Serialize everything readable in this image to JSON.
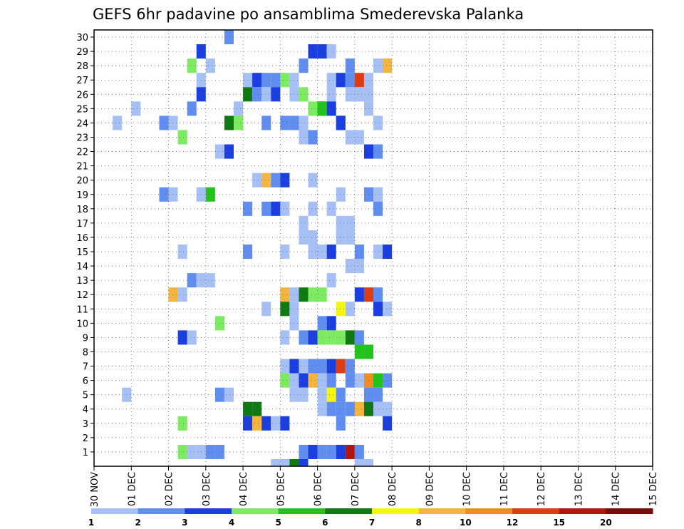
{
  "chart_data": {
    "type": "heatmap",
    "title": "GEFS 6hr padavine po ansamblima Smederevska Palanka",
    "xlabel": "",
    "ylabel": "",
    "x_ticks": [
      "30 NOV",
      "01 DEC",
      "02 DEC",
      "03 DEC",
      "04 DEC",
      "05 DEC",
      "06 DEC",
      "07 DEC",
      "08 DEC",
      "09 DEC",
      "10 DEC",
      "11 DEC",
      "12 DEC",
      "13 DEC",
      "14 DEC",
      "15 DEC"
    ],
    "y_ticks": [
      1,
      2,
      3,
      4,
      5,
      6,
      7,
      8,
      9,
      10,
      11,
      12,
      13,
      14,
      15,
      16,
      17,
      18,
      19,
      20,
      21,
      22,
      23,
      24,
      25,
      26,
      27,
      28,
      29,
      30
    ],
    "xlim_days": [
      0,
      15
    ],
    "ylim": [
      0,
      30
    ],
    "time_step_hours": 6,
    "grid": "dotted",
    "colorbar": {
      "placement": "bottom",
      "labels": [
        "1",
        "2",
        "3",
        "4",
        "5",
        "6",
        "7",
        "8",
        "10",
        "12",
        "15",
        "20"
      ],
      "colors": [
        "#a6c0f5",
        "#5f8df0",
        "#1a3ee0",
        "#7deb62",
        "#22c41c",
        "#0f7a12",
        "#f5f512",
        "#f5b43c",
        "#f08c1e",
        "#e03c14",
        "#b4140f",
        "#7d0a0a"
      ]
    },
    "cells_note": "Each cell: [member, 6-hour step since 30 NOV 00UTC (0-59), precipitation color class index]",
    "cells": [
      [
        30,
        14,
        1
      ],
      [
        29,
        11,
        2
      ],
      [
        29,
        23,
        2
      ],
      [
        29,
        24,
        2
      ],
      [
        29,
        25,
        0
      ],
      [
        28,
        10,
        3
      ],
      [
        28,
        12,
        0
      ],
      [
        28,
        22,
        1
      ],
      [
        28,
        27,
        1
      ],
      [
        28,
        30,
        0
      ],
      [
        28,
        31,
        7
      ],
      [
        27,
        11,
        0
      ],
      [
        27,
        16,
        0
      ],
      [
        27,
        17,
        2
      ],
      [
        27,
        18,
        1
      ],
      [
        27,
        19,
        1
      ],
      [
        27,
        20,
        3
      ],
      [
        27,
        21,
        0
      ],
      [
        27,
        21,
        0
      ],
      [
        27,
        25,
        0
      ],
      [
        27,
        26,
        2
      ],
      [
        27,
        27,
        1
      ],
      [
        27,
        28,
        9
      ],
      [
        27,
        29,
        0
      ],
      [
        26,
        11,
        2
      ],
      [
        26,
        16,
        5
      ],
      [
        26,
        17,
        1
      ],
      [
        26,
        18,
        0
      ],
      [
        26,
        19,
        2
      ],
      [
        26,
        21,
        0
      ],
      [
        26,
        22,
        3
      ],
      [
        26,
        25,
        0
      ],
      [
        26,
        27,
        0
      ],
      [
        26,
        28,
        0
      ],
      [
        26,
        29,
        0
      ],
      [
        25,
        4,
        0
      ],
      [
        25,
        10,
        1
      ],
      [
        25,
        15,
        0
      ],
      [
        25,
        23,
        3
      ],
      [
        25,
        24,
        1
      ],
      [
        25,
        24,
        4
      ],
      [
        25,
        25,
        2
      ],
      [
        25,
        29,
        0
      ],
      [
        24,
        2,
        0
      ],
      [
        24,
        7,
        1
      ],
      [
        24,
        8,
        0
      ],
      [
        24,
        14,
        5
      ],
      [
        24,
        15,
        3
      ],
      [
        24,
        18,
        1
      ],
      [
        24,
        20,
        1
      ],
      [
        24,
        21,
        1
      ],
      [
        24,
        22,
        0
      ],
      [
        24,
        26,
        8
      ],
      [
        24,
        26,
        2
      ],
      [
        24,
        30,
        0
      ],
      [
        23,
        9,
        3
      ],
      [
        23,
        22,
        0
      ],
      [
        23,
        23,
        1
      ],
      [
        23,
        27,
        0
      ],
      [
        23,
        28,
        0
      ],
      [
        22,
        13,
        0
      ],
      [
        22,
        14,
        3
      ],
      [
        22,
        14,
        2
      ],
      [
        22,
        29,
        2
      ],
      [
        22,
        30,
        1
      ],
      [
        20,
        17,
        0
      ],
      [
        20,
        18,
        7
      ],
      [
        20,
        19,
        1
      ],
      [
        20,
        20,
        2
      ],
      [
        20,
        23,
        0
      ],
      [
        19,
        7,
        1
      ],
      [
        19,
        8,
        0
      ],
      [
        19,
        11,
        0
      ],
      [
        19,
        12,
        4
      ],
      [
        19,
        26,
        0
      ],
      [
        19,
        29,
        1
      ],
      [
        19,
        30,
        0
      ],
      [
        18,
        16,
        1
      ],
      [
        18,
        18,
        1
      ],
      [
        18,
        19,
        2
      ],
      [
        18,
        20,
        0
      ],
      [
        18,
        23,
        0
      ],
      [
        18,
        25,
        0
      ],
      [
        18,
        30,
        1
      ],
      [
        17,
        22,
        0
      ],
      [
        17,
        26,
        0
      ],
      [
        17,
        27,
        0
      ],
      [
        16,
        22,
        0
      ],
      [
        16,
        23,
        0
      ],
      [
        16,
        26,
        0
      ],
      [
        16,
        27,
        0
      ],
      [
        15,
        9,
        0
      ],
      [
        15,
        16,
        1
      ],
      [
        15,
        20,
        0
      ],
      [
        15,
        23,
        0
      ],
      [
        15,
        24,
        0
      ],
      [
        15,
        25,
        2
      ],
      [
        15,
        28,
        1
      ],
      [
        15,
        30,
        0
      ],
      [
        15,
        31,
        2
      ],
      [
        14,
        27,
        0
      ],
      [
        14,
        28,
        0
      ],
      [
        13,
        10,
        1
      ],
      [
        13,
        11,
        0
      ],
      [
        13,
        12,
        0
      ],
      [
        13,
        25,
        0
      ],
      [
        12,
        8,
        7
      ],
      [
        12,
        9,
        0
      ],
      [
        12,
        20,
        7
      ],
      [
        12,
        21,
        0
      ],
      [
        12,
        22,
        5
      ],
      [
        12,
        23,
        3
      ],
      [
        12,
        24,
        3
      ],
      [
        12,
        28,
        2
      ],
      [
        12,
        29,
        9
      ],
      [
        12,
        30,
        1
      ],
      [
        11,
        18,
        0
      ],
      [
        11,
        20,
        5
      ],
      [
        11,
        21,
        0
      ],
      [
        11,
        26,
        6
      ],
      [
        11,
        27,
        0
      ],
      [
        11,
        30,
        2
      ],
      [
        11,
        31,
        0
      ],
      [
        10,
        13,
        3
      ],
      [
        10,
        21,
        0
      ],
      [
        10,
        24,
        1
      ],
      [
        10,
        25,
        2
      ],
      [
        9,
        9,
        2
      ],
      [
        9,
        10,
        0
      ],
      [
        9,
        20,
        0
      ],
      [
        9,
        22,
        1
      ],
      [
        9,
        23,
        2
      ],
      [
        9,
        24,
        3
      ],
      [
        9,
        25,
        3
      ],
      [
        9,
        26,
        3
      ],
      [
        9,
        27,
        5
      ],
      [
        9,
        28,
        1
      ],
      [
        8,
        28,
        4
      ],
      [
        8,
        29,
        4
      ],
      [
        7,
        20,
        0
      ],
      [
        7,
        21,
        2
      ],
      [
        7,
        22,
        0
      ],
      [
        7,
        23,
        1
      ],
      [
        7,
        24,
        1
      ],
      [
        7,
        25,
        2
      ],
      [
        7,
        26,
        9
      ],
      [
        7,
        27,
        1
      ],
      [
        6,
        20,
        3
      ],
      [
        6,
        21,
        0
      ],
      [
        6,
        22,
        2
      ],
      [
        6,
        23,
        6
      ],
      [
        6,
        23,
        7
      ],
      [
        6,
        24,
        0
      ],
      [
        6,
        25,
        1
      ],
      [
        6,
        27,
        1
      ],
      [
        6,
        28,
        0
      ],
      [
        6,
        29,
        8
      ],
      [
        6,
        30,
        4
      ],
      [
        6,
        31,
        1
      ],
      [
        5,
        3,
        0
      ],
      [
        5,
        13,
        1
      ],
      [
        5,
        14,
        0
      ],
      [
        5,
        21,
        0
      ],
      [
        5,
        22,
        0
      ],
      [
        5,
        24,
        0
      ],
      [
        5,
        25,
        6
      ],
      [
        5,
        26,
        1
      ],
      [
        5,
        29,
        1
      ],
      [
        5,
        30,
        1
      ],
      [
        4,
        16,
        5
      ],
      [
        4,
        17,
        5
      ],
      [
        4,
        24,
        0
      ],
      [
        4,
        25,
        1
      ],
      [
        4,
        26,
        1
      ],
      [
        4,
        27,
        1
      ],
      [
        4,
        28,
        7
      ],
      [
        4,
        29,
        5
      ],
      [
        4,
        30,
        0
      ],
      [
        4,
        31,
        0
      ],
      [
        3,
        9,
        3
      ],
      [
        3,
        16,
        2
      ],
      [
        3,
        17,
        7
      ],
      [
        3,
        18,
        2
      ],
      [
        3,
        19,
        0
      ],
      [
        3,
        20,
        2
      ],
      [
        3,
        26,
        1
      ],
      [
        3,
        31,
        2
      ],
      [
        1,
        9,
        3
      ],
      [
        1,
        10,
        0
      ],
      [
        1,
        11,
        0
      ],
      [
        1,
        12,
        1
      ],
      [
        1,
        13,
        1
      ],
      [
        1,
        22,
        1
      ],
      [
        1,
        23,
        2
      ],
      [
        1,
        24,
        1
      ],
      [
        1,
        25,
        1
      ],
      [
        1,
        26,
        2
      ],
      [
        1,
        27,
        10
      ],
      [
        1,
        28,
        1
      ],
      [
        0,
        19,
        0
      ],
      [
        0,
        20,
        0
      ],
      [
        0,
        21,
        5
      ],
      [
        0,
        22,
        2
      ],
      [
        0,
        28,
        0
      ],
      [
        0,
        29,
        0
      ]
    ]
  }
}
